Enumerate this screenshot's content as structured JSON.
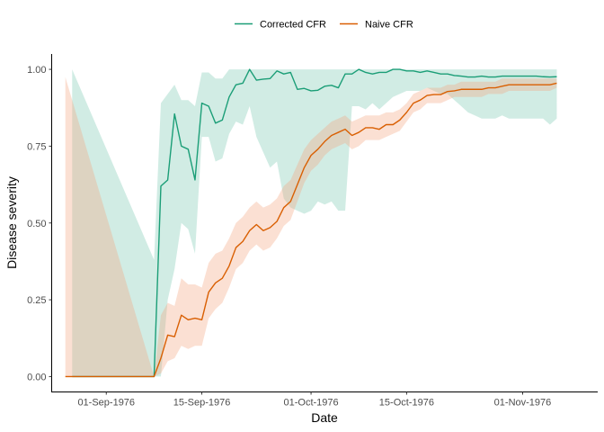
{
  "chart_data": {
    "type": "line",
    "xlabel": "Date",
    "ylabel": "Disease severity",
    "xlim": [
      "1976-08-24",
      "1976-11-12"
    ],
    "ylim": [
      -0.05,
      1.05
    ],
    "x_ticks": [
      {
        "date": "1976-09-01",
        "label": "01-Sep-1976"
      },
      {
        "date": "1976-09-15",
        "label": "15-Sep-1976"
      },
      {
        "date": "1976-10-01",
        "label": "01-Oct-1976"
      },
      {
        "date": "1976-10-15",
        "label": "15-Oct-1976"
      },
      {
        "date": "1976-11-01",
        "label": "01-Nov-1976"
      }
    ],
    "y_ticks": [
      {
        "value": 0,
        "label": "0.00"
      },
      {
        "value": 0.25,
        "label": "0.25"
      },
      {
        "value": 0.5,
        "label": "0.50"
      },
      {
        "value": 0.75,
        "label": "0.75"
      },
      {
        "value": 1,
        "label": "1.00"
      }
    ],
    "grid": false,
    "legend_position": "top",
    "series": [
      {
        "name": "Corrected CFR",
        "color": "#1b9e77",
        "ribbon_color": "#1b9e77",
        "x": [
          "1976-08-27",
          "1976-09-08",
          "1976-09-09",
          "1976-09-10",
          "1976-09-11",
          "1976-09-12",
          "1976-09-13",
          "1976-09-14",
          "1976-09-15",
          "1976-09-16",
          "1976-09-17",
          "1976-09-18",
          "1976-09-19",
          "1976-09-20",
          "1976-09-21",
          "1976-09-22",
          "1976-09-23",
          "1976-09-24",
          "1976-09-25",
          "1976-09-26",
          "1976-09-27",
          "1976-09-28",
          "1976-09-29",
          "1976-09-30",
          "1976-10-01",
          "1976-10-02",
          "1976-10-03",
          "1976-10-04",
          "1976-10-05",
          "1976-10-06",
          "1976-10-07",
          "1976-10-08",
          "1976-10-09",
          "1976-10-10",
          "1976-10-11",
          "1976-10-12",
          "1976-10-13",
          "1976-10-14",
          "1976-10-15",
          "1976-10-16",
          "1976-10-17",
          "1976-10-18",
          "1976-10-19",
          "1976-10-20",
          "1976-10-21",
          "1976-10-22",
          "1976-10-23",
          "1976-10-24",
          "1976-10-25",
          "1976-10-26",
          "1976-10-27",
          "1976-10-28",
          "1976-10-29",
          "1976-10-30",
          "1976-10-31",
          "1976-11-01",
          "1976-11-02",
          "1976-11-03",
          "1976-11-04",
          "1976-11-05",
          "1976-11-06"
        ],
        "y": [
          0.0,
          0.0,
          0.62,
          0.64,
          0.855,
          0.75,
          0.74,
          0.64,
          0.89,
          0.88,
          0.825,
          0.835,
          0.91,
          0.95,
          0.955,
          1.0,
          0.965,
          0.968,
          0.97,
          0.995,
          0.985,
          0.99,
          0.935,
          0.938,
          0.93,
          0.932,
          0.945,
          0.948,
          0.94,
          0.985,
          0.985,
          1.0,
          0.99,
          0.985,
          0.99,
          0.99,
          1.0,
          1.0,
          0.995,
          0.995,
          0.99,
          0.995,
          0.99,
          0.985,
          0.985,
          0.98,
          0.978,
          0.975,
          0.975,
          0.978,
          0.975,
          0.975,
          0.978,
          0.978,
          0.978,
          0.978,
          0.978,
          0.978,
          0.976,
          0.975,
          0.976
        ],
        "lower": [
          0.0,
          0.0,
          0.0,
          0.25,
          0.35,
          0.5,
          0.48,
          0.4,
          0.78,
          0.78,
          0.7,
          0.71,
          0.79,
          0.83,
          0.82,
          0.88,
          0.78,
          0.73,
          0.68,
          0.7,
          0.58,
          0.55,
          0.54,
          0.53,
          0.54,
          0.57,
          0.56,
          0.57,
          0.54,
          0.54,
          0.88,
          0.88,
          0.87,
          0.89,
          0.87,
          0.89,
          0.91,
          0.92,
          0.93,
          0.93,
          0.93,
          0.94,
          0.93,
          0.92,
          0.92,
          0.9,
          0.88,
          0.86,
          0.85,
          0.84,
          0.84,
          0.84,
          0.85,
          0.84,
          0.84,
          0.84,
          0.84,
          0.84,
          0.84,
          0.82,
          0.84
        ],
        "upper": [
          1.0,
          0.38,
          0.89,
          0.92,
          0.95,
          0.9,
          0.9,
          0.88,
          0.99,
          0.99,
          0.97,
          0.97,
          1.0,
          1.0,
          1.0,
          1.0,
          1.0,
          1.0,
          1.0,
          1.0,
          1.0,
          1.0,
          1.0,
          1.0,
          1.0,
          1.0,
          1.0,
          1.0,
          1.0,
          1.0,
          1.0,
          1.0,
          1.0,
          1.0,
          1.0,
          1.0,
          1.0,
          1.0,
          1.0,
          1.0,
          1.0,
          1.0,
          1.0,
          1.0,
          1.0,
          1.0,
          1.0,
          1.0,
          1.0,
          1.0,
          1.0,
          1.0,
          1.0,
          1.0,
          1.0,
          1.0,
          1.0,
          1.0,
          1.0,
          1.0,
          1.0
        ]
      },
      {
        "name": "Naive CFR",
        "color": "#d95f02",
        "ribbon_color": "#f4a582",
        "x": [
          "1976-08-26",
          "1976-09-08",
          "1976-09-09",
          "1976-09-10",
          "1976-09-11",
          "1976-09-12",
          "1976-09-13",
          "1976-09-14",
          "1976-09-15",
          "1976-09-16",
          "1976-09-17",
          "1976-09-18",
          "1976-09-19",
          "1976-09-20",
          "1976-09-21",
          "1976-09-22",
          "1976-09-23",
          "1976-09-24",
          "1976-09-25",
          "1976-09-26",
          "1976-09-27",
          "1976-09-28",
          "1976-09-29",
          "1976-09-30",
          "1976-10-01",
          "1976-10-02",
          "1976-10-03",
          "1976-10-04",
          "1976-10-05",
          "1976-10-06",
          "1976-10-07",
          "1976-10-08",
          "1976-10-09",
          "1976-10-10",
          "1976-10-11",
          "1976-10-12",
          "1976-10-13",
          "1976-10-14",
          "1976-10-15",
          "1976-10-16",
          "1976-10-17",
          "1976-10-18",
          "1976-10-19",
          "1976-10-20",
          "1976-10-21",
          "1976-10-22",
          "1976-10-23",
          "1976-10-24",
          "1976-10-25",
          "1976-10-26",
          "1976-10-27",
          "1976-10-28",
          "1976-10-29",
          "1976-10-30",
          "1976-10-31",
          "1976-11-01",
          "1976-11-02",
          "1976-11-03",
          "1976-11-04",
          "1976-11-05",
          "1976-11-06"
        ],
        "y": [
          0.0,
          0.0,
          0.06,
          0.135,
          0.13,
          0.2,
          0.185,
          0.19,
          0.185,
          0.275,
          0.305,
          0.32,
          0.36,
          0.42,
          0.44,
          0.475,
          0.495,
          0.475,
          0.485,
          0.505,
          0.55,
          0.57,
          0.625,
          0.68,
          0.72,
          0.74,
          0.765,
          0.785,
          0.795,
          0.805,
          0.785,
          0.795,
          0.81,
          0.81,
          0.805,
          0.82,
          0.82,
          0.835,
          0.86,
          0.89,
          0.9,
          0.915,
          0.918,
          0.918,
          0.928,
          0.93,
          0.935,
          0.935,
          0.935,
          0.935,
          0.94,
          0.94,
          0.945,
          0.95,
          0.95,
          0.95,
          0.95,
          0.95,
          0.95,
          0.95,
          0.955
        ],
        "lower": [
          0.0,
          0.0,
          0.01,
          0.05,
          0.06,
          0.1,
          0.09,
          0.1,
          0.1,
          0.19,
          0.22,
          0.24,
          0.29,
          0.35,
          0.37,
          0.41,
          0.43,
          0.41,
          0.42,
          0.45,
          0.49,
          0.51,
          0.57,
          0.63,
          0.67,
          0.69,
          0.72,
          0.74,
          0.75,
          0.76,
          0.74,
          0.75,
          0.77,
          0.77,
          0.77,
          0.78,
          0.79,
          0.8,
          0.83,
          0.86,
          0.87,
          0.89,
          0.89,
          0.89,
          0.9,
          0.91,
          0.91,
          0.91,
          0.91,
          0.91,
          0.92,
          0.92,
          0.92,
          0.93,
          0.93,
          0.93,
          0.93,
          0.93,
          0.93,
          0.93,
          0.94
        ],
        "upper": [
          0.975,
          0.0,
          0.2,
          0.24,
          0.23,
          0.32,
          0.3,
          0.3,
          0.29,
          0.37,
          0.4,
          0.41,
          0.45,
          0.5,
          0.52,
          0.55,
          0.57,
          0.55,
          0.56,
          0.58,
          0.62,
          0.64,
          0.69,
          0.74,
          0.77,
          0.79,
          0.81,
          0.83,
          0.84,
          0.85,
          0.83,
          0.84,
          0.85,
          0.85,
          0.85,
          0.86,
          0.86,
          0.87,
          0.89,
          0.92,
          0.93,
          0.94,
          0.94,
          0.94,
          0.95,
          0.95,
          0.96,
          0.96,
          0.96,
          0.96,
          0.96,
          0.96,
          0.97,
          0.97,
          0.97,
          0.97,
          0.97,
          0.97,
          0.97,
          0.97,
          0.97
        ]
      }
    ]
  }
}
